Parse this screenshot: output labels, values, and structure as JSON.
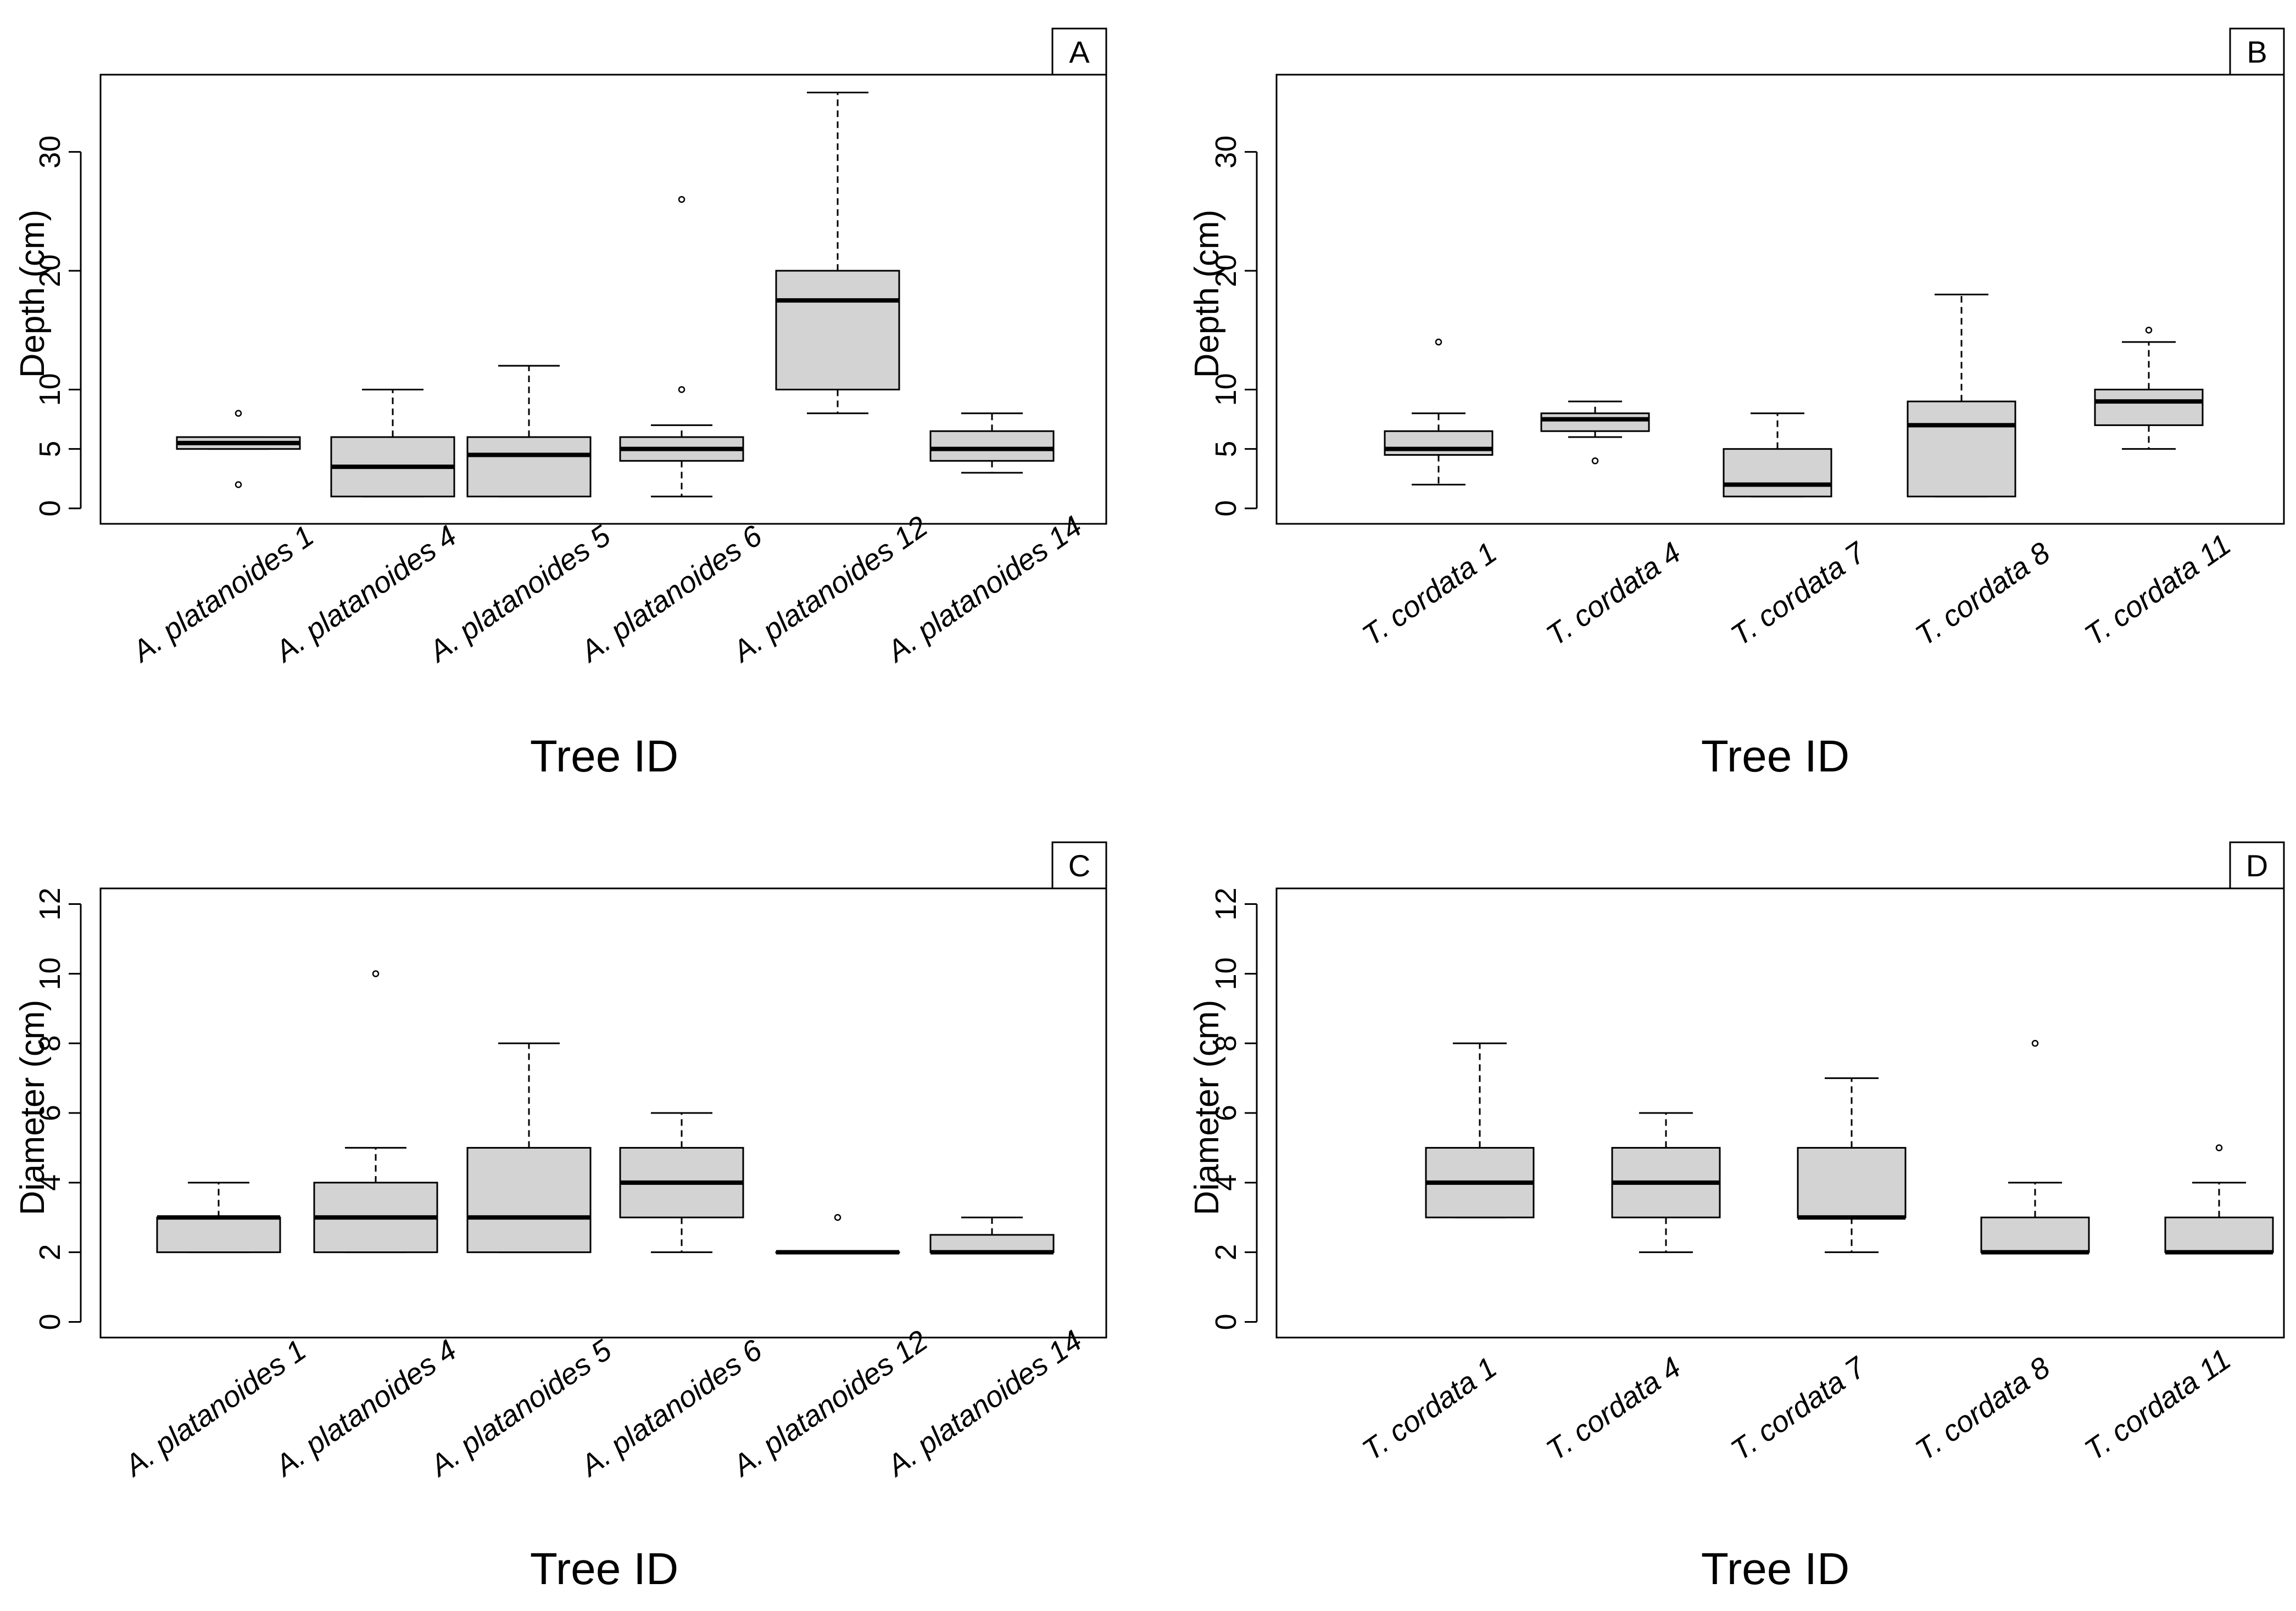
{
  "chart_data": [
    {
      "panel_label": "A",
      "type": "boxplot",
      "xlabel": "Tree ID",
      "ylabel": "Depth (cm)",
      "ylim": [
        -1.3,
        36.5
      ],
      "yticks": [
        0,
        5,
        10,
        20,
        30
      ],
      "grid": false,
      "categories": [
        "A. platanoides 1",
        "A. platanoides 4",
        "A. platanoides 5",
        "A. platanoides 6",
        "A. platanoides 12",
        "A. platanoides 14"
      ],
      "boxes": [
        {
          "whisker_low": 5,
          "q1": 5,
          "median": 5.5,
          "q3": 6,
          "whisker_high": 6,
          "outliers": [
            8,
            2
          ]
        },
        {
          "whisker_low": 1,
          "q1": 1,
          "median": 3.5,
          "q3": 6,
          "whisker_high": 10,
          "outliers": []
        },
        {
          "whisker_low": 1,
          "q1": 1,
          "median": 4.5,
          "q3": 6,
          "whisker_high": 12,
          "outliers": []
        },
        {
          "whisker_low": 1,
          "q1": 4,
          "median": 5,
          "q3": 6,
          "whisker_high": 7,
          "outliers": [
            26,
            10
          ]
        },
        {
          "whisker_low": 8,
          "q1": 10,
          "median": 17.5,
          "q3": 20,
          "whisker_high": 35,
          "outliers": []
        },
        {
          "whisker_low": 3,
          "q1": 4,
          "median": 5,
          "q3": 6.5,
          "whisker_high": 8,
          "outliers": []
        }
      ]
    },
    {
      "panel_label": "B",
      "type": "boxplot",
      "xlabel": "Tree ID",
      "ylabel": "Depth (cm)",
      "ylim": [
        -1.3,
        36.5
      ],
      "yticks": [
        0,
        5,
        10,
        20,
        30
      ],
      "grid": false,
      "categories": [
        "T. cordata 1",
        "T. cordata 4",
        "T. cordata 7",
        "T. cordata 8",
        "T. cordata 11"
      ],
      "boxes": [
        {
          "whisker_low": 2,
          "q1": 4.5,
          "median": 5,
          "q3": 6.5,
          "whisker_high": 8,
          "outliers": [
            14
          ]
        },
        {
          "whisker_low": 6,
          "q1": 6.5,
          "median": 7.5,
          "q3": 8,
          "whisker_high": 9,
          "outliers": [
            4
          ]
        },
        {
          "whisker_low": 1,
          "q1": 1,
          "median": 2,
          "q3": 5,
          "whisker_high": 8,
          "outliers": []
        },
        {
          "whisker_low": 1,
          "q1": 1,
          "median": 7,
          "q3": 9,
          "whisker_high": 18,
          "outliers": []
        },
        {
          "whisker_low": 5,
          "q1": 7,
          "median": 9,
          "q3": 10,
          "whisker_high": 14,
          "outliers": [
            15
          ]
        }
      ]
    },
    {
      "panel_label": "C",
      "type": "boxplot",
      "xlabel": "Tree ID",
      "ylabel": "Diameter (cm)",
      "ylim": [
        -0.45,
        12.45
      ],
      "yticks": [
        0,
        2,
        4,
        6,
        8,
        10,
        12
      ],
      "grid": false,
      "categories": [
        "A. platanoides 1",
        "A. platanoides 4",
        "A. platanoides 5",
        "A. platanoides 6",
        "A. platanoides 12",
        "A. platanoides 14"
      ],
      "boxes": [
        {
          "whisker_low": 2,
          "q1": 2,
          "median": 3,
          "q3": 3,
          "whisker_high": 4,
          "outliers": []
        },
        {
          "whisker_low": 2,
          "q1": 2,
          "median": 3,
          "q3": 4,
          "whisker_high": 5,
          "outliers": [
            10
          ]
        },
        {
          "whisker_low": 2,
          "q1": 2,
          "median": 3,
          "q3": 5,
          "whisker_high": 8,
          "outliers": []
        },
        {
          "whisker_low": 2,
          "q1": 3,
          "median": 4,
          "q3": 5,
          "whisker_high": 6,
          "outliers": []
        },
        {
          "whisker_low": 2,
          "q1": 2,
          "median": 2,
          "q3": 2,
          "whisker_high": 2,
          "outliers": [
            3
          ]
        },
        {
          "whisker_low": 2,
          "q1": 2,
          "median": 2,
          "q3": 2.5,
          "whisker_high": 3,
          "outliers": []
        }
      ]
    },
    {
      "panel_label": "D",
      "type": "boxplot",
      "xlabel": "Tree ID",
      "ylabel": "Diameter (cm)",
      "ylim": [
        -0.45,
        12.45
      ],
      "yticks": [
        0,
        2,
        4,
        6,
        8,
        10,
        12
      ],
      "grid": false,
      "categories": [
        "T. cordata 1",
        "T. cordata 4",
        "T. cordata 7",
        "T. cordata 8",
        "T. cordata 11"
      ],
      "boxes": [
        {
          "whisker_low": 3,
          "q1": 3,
          "median": 4,
          "q3": 5,
          "whisker_high": 8,
          "outliers": []
        },
        {
          "whisker_low": 2,
          "q1": 3,
          "median": 4,
          "q3": 5,
          "whisker_high": 6,
          "outliers": []
        },
        {
          "whisker_low": 2,
          "q1": 3,
          "median": 3,
          "q3": 5,
          "whisker_high": 7,
          "outliers": []
        },
        {
          "whisker_low": 2,
          "q1": 2,
          "median": 2,
          "q3": 3,
          "whisker_high": 4,
          "outliers": [
            8
          ]
        },
        {
          "whisker_low": 2,
          "q1": 2,
          "median": 2,
          "q3": 3,
          "whisker_high": 4,
          "outliers": [
            5
          ]
        }
      ]
    }
  ],
  "colors": {
    "box_fill": "#d3d3d3",
    "line": "#000000",
    "background": "#ffffff"
  }
}
